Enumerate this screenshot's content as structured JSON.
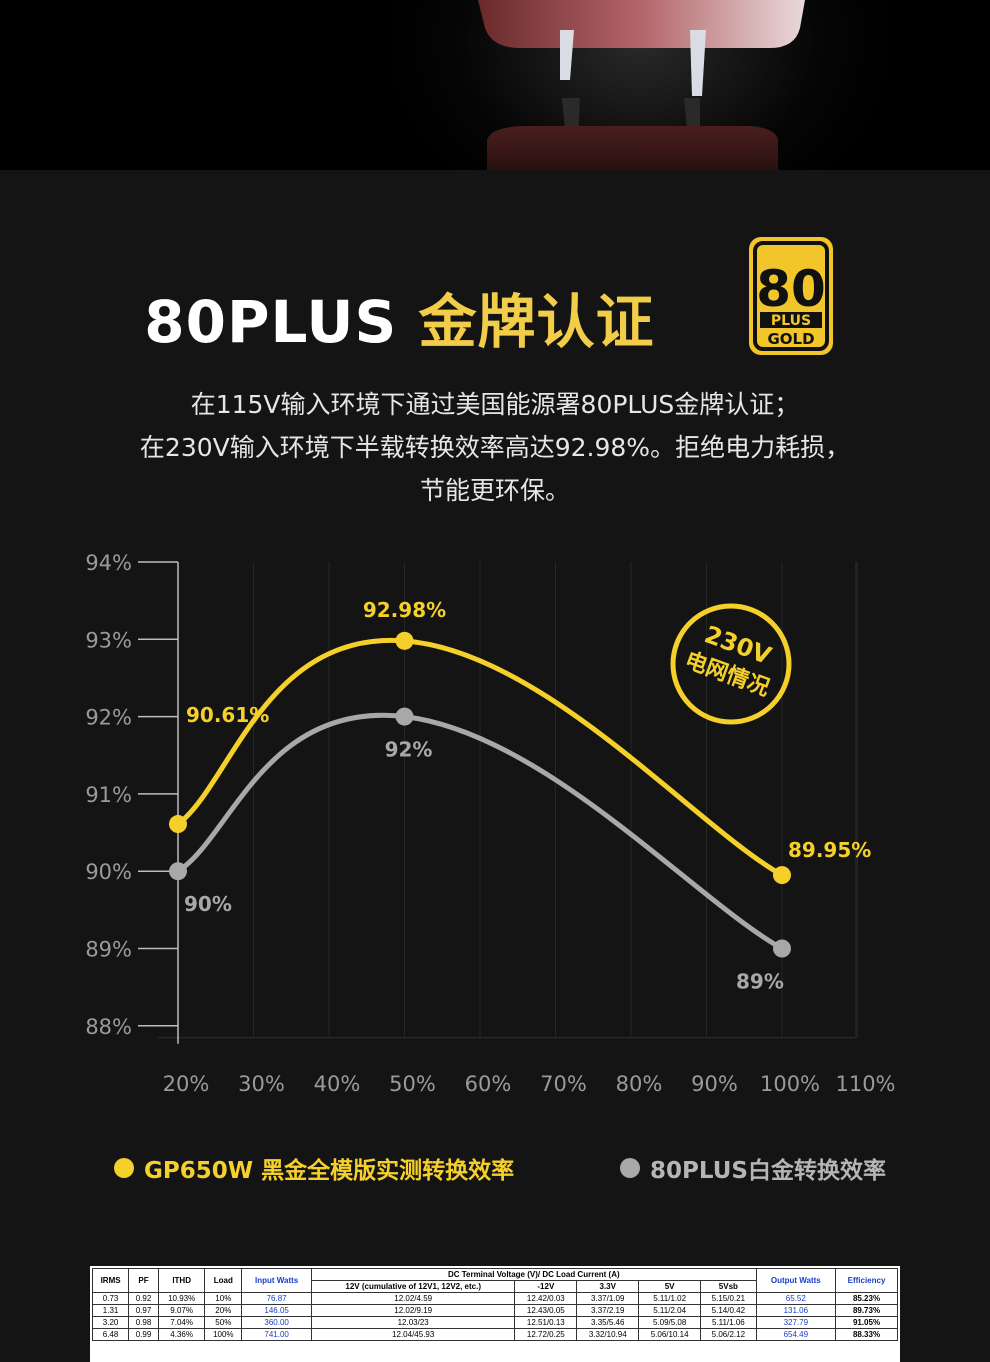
{
  "header": {
    "title_white": "80PLUS",
    "title_gold": "金牌认证",
    "badge": {
      "number": "80",
      "plus": "PLUS",
      "grade": "GOLD"
    },
    "subtitle_lines": [
      "在115V输入环境下通过美国能源署80PLUS金牌认证；",
      "在230V输入环境下半载转换效率高达92.98%。拒绝电力耗损，",
      "节能更环保。"
    ]
  },
  "chart_data": {
    "type": "line",
    "x": [
      20,
      50,
      100
    ],
    "xlim": [
      20,
      110
    ],
    "ylim": [
      88,
      94
    ],
    "x_ticks": [
      "20%",
      "30%",
      "40%",
      "50%",
      "60%",
      "70%",
      "80%",
      "90%",
      "100%",
      "110%"
    ],
    "y_ticks": [
      "94%",
      "93%",
      "92%",
      "91%",
      "90%",
      "89%",
      "88%"
    ],
    "grid": true,
    "series": [
      {
        "name": "GP650W 黑金全模版实测转换效率",
        "color": "#f5d02b",
        "values": [
          90.61,
          92.98,
          89.95
        ],
        "labels": [
          "90.61%",
          "92.98%",
          "89.95%"
        ]
      },
      {
        "name": "80PLUS白金转换效率",
        "color": "#a8a8a8",
        "values": [
          90,
          92,
          89
        ],
        "labels": [
          "90%",
          "92%",
          "89%"
        ]
      }
    ],
    "annotation": {
      "line1": "230V",
      "line2": "电网情况"
    },
    "legend_position": "bottom"
  },
  "spec_table": {
    "headers": {
      "irms": "IRMS",
      "pf": "PF",
      "ithd": "ITHD",
      "load": "Load",
      "input_watts": "Input Watts",
      "dc_group": "DC Terminal Voltage (V)/ DC Load Current (A)",
      "v12": "12V (cumulative of 12V1, 12V2, etc.)",
      "vm12": "-12V",
      "v33": "3.3V",
      "v5": "5V",
      "v5sb": "5Vsb",
      "output_watts": "Output Watts",
      "efficiency": "Efficiency"
    },
    "rows": [
      [
        "0.73",
        "0.92",
        "10.93%",
        "10%",
        "76.87",
        "12.02/4.59",
        "12.42/0.03",
        "3.37/1.09",
        "5.11/1.02",
        "5.15/0.21",
        "65.52",
        "85.23%"
      ],
      [
        "1.31",
        "0.97",
        "9.07%",
        "20%",
        "146.05",
        "12.02/9.19",
        "12.43/0.05",
        "3.37/2.19",
        "5.11/2.04",
        "5.14/0.42",
        "131.06",
        "89.73%"
      ],
      [
        "3.20",
        "0.98",
        "7.04%",
        "50%",
        "360.00",
        "12.03/23",
        "12.51/0.13",
        "3.35/5.46",
        "5.09/5.08",
        "5.11/1.06",
        "327.79",
        "91.05%"
      ],
      [
        "6.48",
        "0.99",
        "4.36%",
        "100%",
        "741.00",
        "12.04/45.93",
        "12.72/0.25",
        "3.32/10.94",
        "5.06/10.14",
        "5.06/2.12",
        "654.49",
        "88.33%"
      ]
    ]
  }
}
